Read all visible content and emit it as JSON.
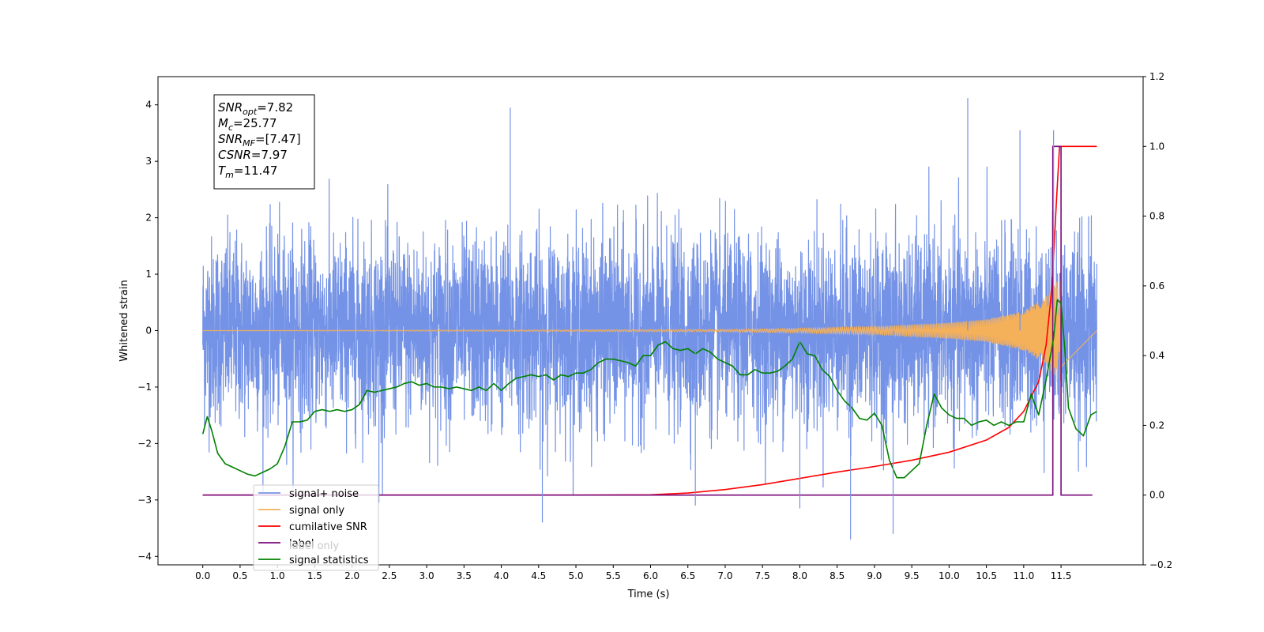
{
  "chart_data": {
    "type": "line",
    "title": "",
    "xlabel": "Time (s)",
    "ylabel_left": "Whitened strain",
    "ylabel_right": "",
    "xlim": [
      -0.6,
      12.6
    ],
    "ylim_left": [
      -4.15,
      4.5
    ],
    "ylim_right": [
      -0.2,
      1.2
    ],
    "x_ticks": [
      0.0,
      0.5,
      1.0,
      1.5,
      2.0,
      2.5,
      3.0,
      3.5,
      4.0,
      4.5,
      5.0,
      5.5,
      6.0,
      6.5,
      7.0,
      7.5,
      8.0,
      8.5,
      9.0,
      9.5,
      10.0,
      10.5,
      11.0,
      11.5
    ],
    "x_tick_labels": [
      "0.0",
      "0.5",
      "1.0",
      "1.5",
      "2.0",
      "2.5",
      "3.0",
      "3.5",
      "4.0",
      "4.5",
      "5.0",
      "5.5",
      "6.0",
      "6.5",
      "7.0",
      "7.5",
      "8.0",
      "8.5",
      "9.0",
      "9.5",
      "10.0",
      "10.5",
      "11.0",
      "11.5"
    ],
    "y_left_ticks": [
      4,
      3,
      2,
      1,
      0,
      -1,
      -2,
      -3,
      -4
    ],
    "y_left_tick_labels": [
      "4",
      "3",
      "2",
      "1",
      "0",
      "−1",
      "−2",
      "−3",
      "−4"
    ],
    "y_right_ticks": [
      1.2,
      1.0,
      0.8,
      0.6,
      0.4,
      0.2,
      0.0,
      -0.2
    ],
    "y_right_tick_labels": [
      "1.2",
      "1.0",
      "0.8",
      "0.6",
      "0.4",
      "0.2",
      "0.0",
      "−0.2"
    ],
    "grid": false,
    "legend_position": "lower-left",
    "annotation": {
      "lines": [
        {
          "base": "SNR",
          "sub": "opt",
          "value": "=7.82"
        },
        {
          "base": "M",
          "sub": "c",
          "value": "=25.77"
        },
        {
          "base": "SNR",
          "sub": "MF",
          "value": "=[7.47]"
        },
        {
          "base": "CSNR",
          "sub": "",
          "value": "=7.97"
        },
        {
          "base": "T",
          "sub": "m",
          "value": "=11.47"
        }
      ]
    },
    "series": [
      {
        "name": "signal+ noise",
        "axis": "left",
        "color": "#7593e6",
        "noise_sigma": 1.0,
        "noise_extrema": [
          [
            2.36,
            -3.05
          ],
          [
            4.12,
            3.95
          ],
          [
            4.55,
            -3.4
          ],
          [
            6.6,
            -3.1
          ],
          [
            8.0,
            -3.15
          ],
          [
            8.68,
            -3.7
          ],
          [
            9.25,
            -3.6
          ],
          [
            10.25,
            4.12
          ],
          [
            10.95,
            3.55
          ],
          [
            11.4,
            3.55
          ]
        ],
        "t_start": 0.0,
        "t_end": 11.98
      },
      {
        "name": "signal only",
        "axis": "left",
        "color": "#f5b05a",
        "amplitude": [
          [
            0.0,
            0.002
          ],
          [
            7.0,
            0.02
          ],
          [
            8.0,
            0.04
          ],
          [
            9.0,
            0.07
          ],
          [
            10.0,
            0.14
          ],
          [
            10.5,
            0.2
          ],
          [
            11.0,
            0.35
          ],
          [
            11.3,
            0.6
          ],
          [
            11.45,
            0.9
          ],
          [
            11.5,
            0.95
          ]
        ]
      },
      {
        "name": "cumilative SNR",
        "axis": "right",
        "color": "#ff0000",
        "x": [
          0.0,
          5.0,
          6.0,
          6.5,
          7.0,
          7.5,
          8.0,
          8.5,
          9.0,
          9.5,
          10.0,
          10.5,
          10.8,
          11.0,
          11.2,
          11.3,
          11.38,
          11.44,
          11.48,
          11.5,
          11.6,
          11.98
        ],
        "y": [
          0.0,
          0.0,
          0.001,
          0.006,
          0.016,
          0.03,
          0.048,
          0.066,
          0.082,
          0.1,
          0.123,
          0.158,
          0.194,
          0.24,
          0.325,
          0.43,
          0.6,
          0.85,
          1.0,
          1.0,
          1.0,
          1.0
        ]
      },
      {
        "name": "label",
        "axis": "right",
        "color": "#7b0a7b",
        "x": [
          0.0,
          11.39,
          11.39,
          11.5,
          11.5,
          11.92
        ],
        "y": [
          0.0,
          0.0,
          1.0,
          1.0,
          0.0,
          0.0
        ]
      },
      {
        "name": "label only",
        "axis": "right",
        "color": "#d0d0d0",
        "hidden": true
      },
      {
        "name": "signal statistics",
        "axis": "right",
        "color": "#008000",
        "x": [
          0.0,
          0.06,
          0.12,
          0.2,
          0.3,
          0.4,
          0.5,
          0.6,
          0.7,
          0.8,
          0.9,
          1.0,
          1.1,
          1.2,
          1.3,
          1.4,
          1.5,
          1.6,
          1.7,
          1.8,
          1.9,
          2.0,
          2.1,
          2.2,
          2.3,
          2.4,
          2.5,
          2.6,
          2.7,
          2.8,
          2.9,
          3.0,
          3.1,
          3.2,
          3.3,
          3.4,
          3.5,
          3.6,
          3.7,
          3.8,
          3.9,
          4.0,
          4.1,
          4.2,
          4.3,
          4.4,
          4.5,
          4.6,
          4.7,
          4.8,
          4.9,
          5.0,
          5.1,
          5.2,
          5.3,
          5.4,
          5.5,
          5.6,
          5.7,
          5.8,
          5.9,
          6.0,
          6.1,
          6.2,
          6.3,
          6.4,
          6.5,
          6.6,
          6.7,
          6.8,
          6.9,
          7.0,
          7.1,
          7.2,
          7.3,
          7.4,
          7.5,
          7.6,
          7.7,
          7.8,
          7.9,
          8.0,
          8.1,
          8.2,
          8.3,
          8.4,
          8.5,
          8.6,
          8.7,
          8.8,
          8.9,
          9.0,
          9.1,
          9.2,
          9.3,
          9.4,
          9.5,
          9.6,
          9.7,
          9.8,
          9.9,
          10.0,
          10.1,
          10.2,
          10.3,
          10.4,
          10.5,
          10.6,
          10.7,
          10.8,
          10.9,
          11.0,
          11.1,
          11.2,
          11.3,
          11.4,
          11.45,
          11.5,
          11.55,
          11.6,
          11.7,
          11.8,
          11.9,
          11.98
        ],
        "y": [
          0.175,
          0.225,
          0.185,
          0.12,
          0.09,
          0.08,
          0.07,
          0.06,
          0.055,
          0.065,
          0.075,
          0.09,
          0.14,
          0.21,
          0.21,
          0.215,
          0.24,
          0.245,
          0.24,
          0.245,
          0.24,
          0.245,
          0.26,
          0.3,
          0.295,
          0.3,
          0.305,
          0.31,
          0.32,
          0.325,
          0.315,
          0.32,
          0.31,
          0.31,
          0.305,
          0.31,
          0.305,
          0.3,
          0.31,
          0.3,
          0.32,
          0.3,
          0.32,
          0.335,
          0.34,
          0.345,
          0.34,
          0.345,
          0.33,
          0.345,
          0.34,
          0.35,
          0.35,
          0.36,
          0.38,
          0.39,
          0.39,
          0.385,
          0.38,
          0.37,
          0.4,
          0.4,
          0.43,
          0.44,
          0.42,
          0.415,
          0.42,
          0.405,
          0.42,
          0.41,
          0.39,
          0.38,
          0.37,
          0.345,
          0.345,
          0.36,
          0.35,
          0.35,
          0.355,
          0.37,
          0.39,
          0.44,
          0.405,
          0.4,
          0.36,
          0.34,
          0.3,
          0.27,
          0.25,
          0.22,
          0.215,
          0.235,
          0.2,
          0.1,
          0.05,
          0.05,
          0.07,
          0.09,
          0.2,
          0.29,
          0.25,
          0.23,
          0.22,
          0.22,
          0.2,
          0.21,
          0.215,
          0.2,
          0.21,
          0.2,
          0.21,
          0.21,
          0.29,
          0.23,
          0.33,
          0.45,
          0.56,
          0.55,
          0.42,
          0.25,
          0.19,
          0.17,
          0.23,
          0.24
        ]
      }
    ]
  }
}
